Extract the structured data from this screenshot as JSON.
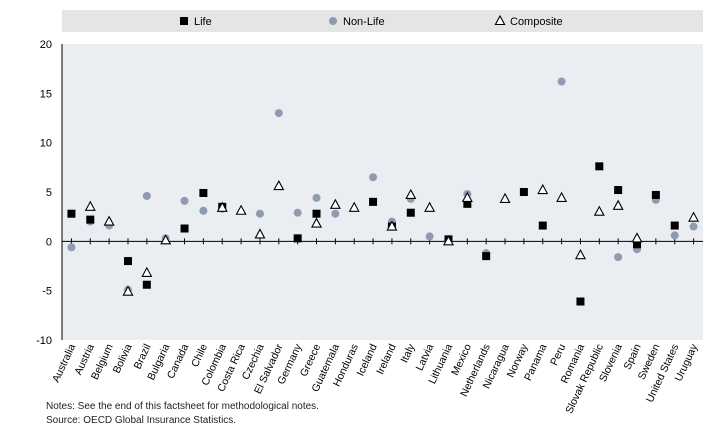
{
  "chart_data": {
    "type": "scatter",
    "title": "",
    "xlabel": "",
    "ylabel": "",
    "ylim": [
      -10,
      20
    ],
    "yticks": [
      -10,
      -5,
      0,
      5,
      10,
      15,
      20
    ],
    "grid": false,
    "legend_position": "top",
    "categories": [
      "Australia",
      "Austria",
      "Belgium",
      "Bolivia",
      "Brazil",
      "Bulgaria",
      "Canada",
      "Chile",
      "Colombia",
      "Costa Rica",
      "Czechia",
      "El Salvador",
      "Germany",
      "Greece",
      "Guatemala",
      "Honduras",
      "Iceland",
      "Ireland",
      "Italy",
      "Latvia",
      "Lithuania",
      "Mexico",
      "Netherlands",
      "Nicaragua",
      "Norway",
      "Panama",
      "Peru",
      "Romania",
      "Slovak Republic",
      "Slovenia",
      "Spain",
      "Sweden",
      "United States",
      "Uruguay"
    ],
    "series": [
      {
        "name": "Life",
        "marker": "square",
        "color": "#000000",
        "values": [
          2.8,
          2.2,
          null,
          -2.0,
          -4.4,
          null,
          1.3,
          4.9,
          3.5,
          null,
          null,
          null,
          0.3,
          2.8,
          null,
          null,
          4.0,
          1.5,
          2.9,
          null,
          0.2,
          3.8,
          -1.5,
          null,
          5.0,
          1.6,
          null,
          -6.1,
          7.6,
          5.2,
          -0.3,
          4.7,
          1.6,
          null
        ]
      },
      {
        "name": "Non-Life",
        "marker": "circle",
        "color": "#8e9bb0",
        "values": [
          -0.6,
          2.0,
          1.6,
          -4.9,
          4.6,
          0.3,
          4.1,
          3.1,
          3.3,
          null,
          2.8,
          13.0,
          2.9,
          4.4,
          2.8,
          null,
          6.5,
          2.0,
          4.3,
          0.5,
          0.2,
          4.8,
          -1.2,
          null,
          null,
          null,
          16.2,
          null,
          null,
          -1.6,
          -0.8,
          4.2,
          0.6,
          1.5
        ]
      },
      {
        "name": "Composite",
        "marker": "triangle",
        "color": "#000000",
        "values": [
          null,
          3.5,
          2.0,
          -5.1,
          -3.2,
          0.1,
          null,
          null,
          3.4,
          3.1,
          0.7,
          5.6,
          null,
          1.8,
          3.7,
          3.4,
          null,
          1.5,
          4.7,
          3.4,
          0.0,
          4.4,
          null,
          4.3,
          null,
          5.2,
          4.4,
          -1.4,
          3.0,
          3.6,
          0.3,
          null,
          null,
          2.4
        ]
      }
    ]
  },
  "notes": {
    "line1": "Notes: See the end of this factsheet for methodological notes.",
    "line2": "Source: OECD Global Insurance Statistics."
  }
}
